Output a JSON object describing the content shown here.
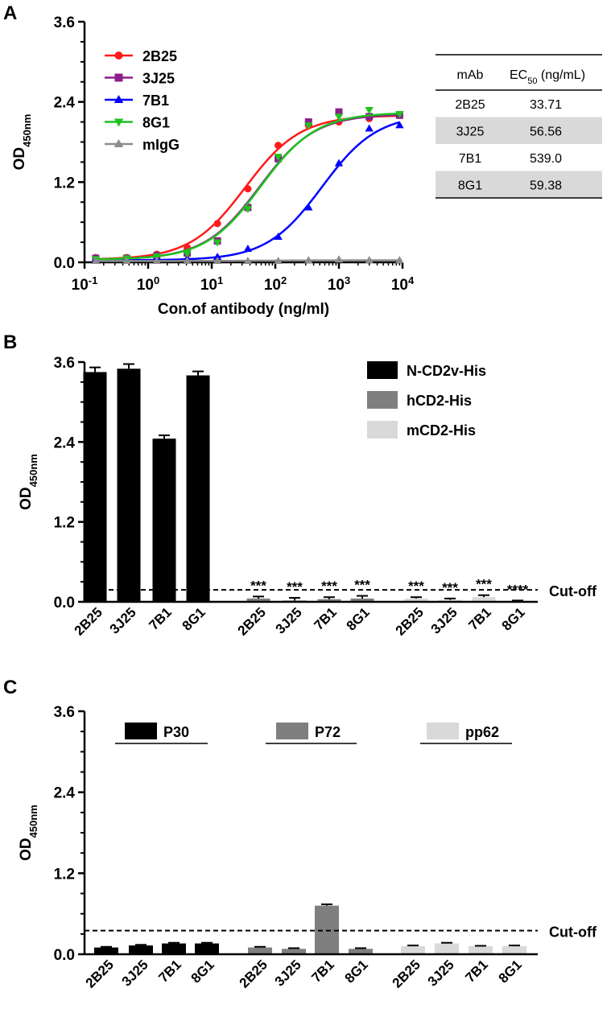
{
  "panels": {
    "A": {
      "label": "A",
      "chart_data": {
        "type": "line",
        "xscale": "log",
        "xlim": [
          0.1,
          10000
        ],
        "ylim": [
          0,
          3.6
        ],
        "yticks": [
          "0.0",
          "1.2",
          "2.4",
          "3.6"
        ],
        "yticks_values": [
          0,
          1.2,
          2.4,
          3.6
        ],
        "xticks": [
          {
            "base": "10",
            "exp": "-1"
          },
          {
            "base": "10",
            "exp": "0"
          },
          {
            "base": "10",
            "exp": "1"
          },
          {
            "base": "10",
            "exp": "2"
          },
          {
            "base": "10",
            "exp": "3"
          },
          {
            "base": "10",
            "exp": "4"
          }
        ],
        "xlabel": "Con.of antibody (ng/ml)",
        "ylabel": {
          "main": "OD",
          "sub": "450nm"
        },
        "legend_position": "top-left",
        "x": [
          0.15,
          0.46,
          1.37,
          4.12,
          12.3,
          37,
          111,
          333,
          1000,
          3000,
          9000
        ],
        "series": [
          {
            "name": "2B25",
            "color": "#ff1a1a",
            "marker": "circle",
            "values": [
              0.07,
              0.07,
              0.12,
              0.22,
              0.58,
              1.1,
              1.75,
              2.05,
              2.1,
              2.15,
              2.2
            ],
            "fit": {
              "bottom": 0.04,
              "top": 2.2,
              "ec50": 33.71,
              "hill": 1.0
            }
          },
          {
            "name": "3J25",
            "color": "#8b1f8b",
            "marker": "square",
            "values": [
              0.06,
              0.06,
              0.1,
              0.14,
              0.32,
              0.82,
              1.55,
              2.1,
              2.25,
              2.18,
              2.2
            ],
            "fit": {
              "bottom": 0.04,
              "top": 2.22,
              "ec50": 56.56,
              "hill": 1.0
            }
          },
          {
            "name": "7B1",
            "color": "#0000ff",
            "marker": "triangle-up",
            "values": [
              0.04,
              0.04,
              0.05,
              0.06,
              0.08,
              0.2,
              0.38,
              0.82,
              1.48,
              2.0,
              2.05
            ],
            "fit": {
              "bottom": 0.03,
              "top": 2.22,
              "ec50": 539.0,
              "hill": 1.0
            }
          },
          {
            "name": "8G1",
            "color": "#1fc21f",
            "marker": "triangle-down",
            "values": [
              0.05,
              0.06,
              0.09,
              0.13,
              0.3,
              0.8,
              1.58,
              2.05,
              2.18,
              2.28,
              2.22
            ],
            "fit": {
              "bottom": 0.04,
              "top": 2.24,
              "ec50": 59.38,
              "hill": 1.0
            }
          },
          {
            "name": "mIgG",
            "color": "#8c8c8c",
            "marker": "triangle-up",
            "values": [
              0.02,
              0.02,
              0.02,
              0.02,
              0.02,
              0.02,
              0.02,
              0.03,
              0.04,
              0.03,
              0.03
            ],
            "fit": {
              "bottom": 0.02,
              "top": 0.03,
              "ec50": 100,
              "hill": 1.0
            }
          }
        ]
      },
      "table": {
        "header_mab": "mAb",
        "header_ec_main": "EC",
        "header_ec_sub": "50",
        "header_ec_unit": " (ng/mL)",
        "rows": [
          {
            "mab": "2B25",
            "ec50": "33.71",
            "shaded": false
          },
          {
            "mab": "3J25",
            "ec50": "56.56",
            "shaded": true
          },
          {
            "mab": "7B1",
            "ec50": "539.0",
            "shaded": false
          },
          {
            "mab": "8G1",
            "ec50": "59.38",
            "shaded": true
          }
        ],
        "shade_color": "#d9d9d9"
      }
    },
    "B": {
      "label": "B",
      "chart_data": {
        "type": "bar",
        "ylim": [
          0,
          3.6
        ],
        "yticks": [
          "0.0",
          "1.2",
          "2.4",
          "3.6"
        ],
        "yticks_values": [
          0,
          1.2,
          2.4,
          3.6
        ],
        "ylabel": {
          "main": "OD",
          "sub": "450nm"
        },
        "legend_position": "top-right",
        "cutoff": 0.18,
        "cutoff_label": "Cut-off",
        "groups": [
          {
            "name": "N-CD2v-His",
            "color": "#000000",
            "categories": [
              "2B25",
              "3J25",
              "7B1",
              "8G1"
            ],
            "values": [
              3.45,
              3.5,
              2.45,
              3.4
            ],
            "errors": [
              0.07,
              0.07,
              0.05,
              0.06
            ],
            "sig": [
              "",
              "",
              "",
              ""
            ]
          },
          {
            "name": "hCD2-His",
            "color": "#7f7f7f",
            "categories": [
              "2B25",
              "3J25",
              "7B1",
              "8G1"
            ],
            "values": [
              0.05,
              0.02,
              0.04,
              0.05
            ],
            "errors": [
              0.03,
              0.04,
              0.03,
              0.04
            ],
            "sig": [
              "***",
              "***",
              "***",
              "***"
            ]
          },
          {
            "name": "mCD2-His",
            "color": "#d9d9d9",
            "categories": [
              "2B25",
              "3J25",
              "7B1",
              "8G1"
            ],
            "values": [
              0.05,
              0.03,
              0.07,
              0.01
            ],
            "errors": [
              0.02,
              0.02,
              0.03,
              0.01
            ],
            "sig": [
              "***",
              "***",
              "***",
              "****"
            ]
          }
        ]
      }
    },
    "C": {
      "label": "C",
      "chart_data": {
        "type": "bar",
        "ylim": [
          0,
          3.6
        ],
        "yticks": [
          "0.0",
          "1.2",
          "2.4",
          "3.6"
        ],
        "yticks_values": [
          0,
          1.2,
          2.4,
          3.6
        ],
        "ylabel": {
          "main": "OD",
          "sub": "450nm"
        },
        "legend_position": "top",
        "cutoff": 0.35,
        "cutoff_label": "Cut-off",
        "groups": [
          {
            "name": "P30",
            "color": "#000000",
            "categories": [
              "2B25",
              "3J25",
              "7B1",
              "8G1"
            ],
            "values": [
              0.1,
              0.13,
              0.16,
              0.16
            ],
            "errors": [
              0.01,
              0.01,
              0.01,
              0.01
            ]
          },
          {
            "name": "P72",
            "color": "#7f7f7f",
            "categories": [
              "2B25",
              "3J25",
              "7B1",
              "8G1"
            ],
            "values": [
              0.1,
              0.08,
              0.72,
              0.08
            ],
            "errors": [
              0.01,
              0.01,
              0.02,
              0.01
            ]
          },
          {
            "name": "pp62",
            "color": "#d9d9d9",
            "categories": [
              "2B25",
              "3J25",
              "7B1",
              "8G1"
            ],
            "values": [
              0.12,
              0.16,
              0.12,
              0.12
            ],
            "errors": [
              0.01,
              0.01,
              0.005,
              0.01
            ]
          }
        ]
      }
    }
  }
}
